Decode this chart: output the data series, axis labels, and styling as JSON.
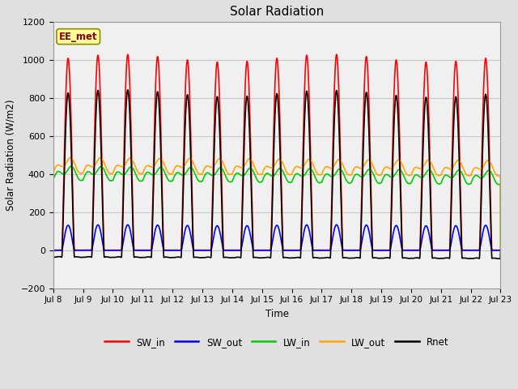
{
  "title": "Solar Radiation",
  "ylabel": "Solar Radiation (W/m2)",
  "xlabel": "Time",
  "ylim": [
    -200,
    1200
  ],
  "xlim": [
    0,
    15
  ],
  "xtick_labels": [
    "Jul 8",
    "Jul 9",
    "Jul 10",
    "Jul 11",
    "Jul 12",
    "Jul 13",
    "Jul 14",
    "Jul 15",
    "Jul 16",
    "Jul 17",
    "Jul 18",
    "Jul 19",
    "Jul 20",
    "Jul 21",
    "Jul 22",
    "Jul 23"
  ],
  "ytick_values": [
    -200,
    0,
    200,
    400,
    600,
    800,
    1000,
    1200
  ],
  "annotation_text": "EE_met",
  "annotation_color": "#8B0000",
  "annotation_bg": "#FFFF99",
  "annotation_border": "#8B8B00",
  "series": {
    "SW_in": {
      "color": "#FF0000",
      "linewidth": 1.2
    },
    "SW_out": {
      "color": "#0000FF",
      "linewidth": 1.2
    },
    "LW_in": {
      "color": "#00CC00",
      "linewidth": 1.2
    },
    "LW_out": {
      "color": "#FFA500",
      "linewidth": 1.2
    },
    "Rnet": {
      "color": "#000000",
      "linewidth": 1.2
    }
  },
  "n_days": 15,
  "grid_color": "#C8C8C8",
  "bg_color": "#E0E0E0",
  "plot_bg_color": "#F0F0F0",
  "figsize": [
    6.4,
    4.8
  ],
  "dpi": 100
}
